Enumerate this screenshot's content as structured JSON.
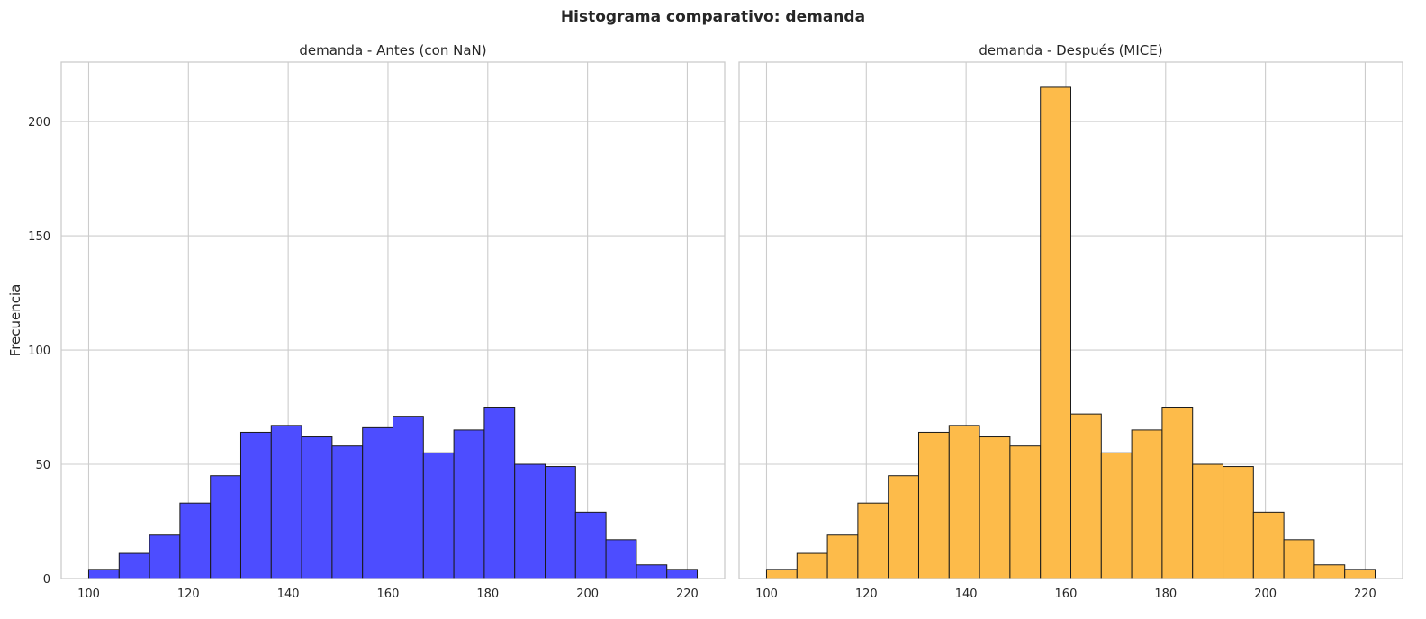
{
  "figure": {
    "title": "Histograma comparativo: demanda"
  },
  "chart_data": [
    {
      "type": "bar",
      "title": "demanda - Antes (con NaN)",
      "xlabel": "",
      "ylabel": "Frecuencia",
      "bin_edges": [
        100,
        106.1,
        112.2,
        118.3,
        124.4,
        130.5,
        136.6,
        142.7,
        148.8,
        154.9,
        161.0,
        167.1,
        173.2,
        179.3,
        185.4,
        191.5,
        197.6,
        203.7,
        209.8,
        215.9,
        222.0
      ],
      "values": [
        4,
        11,
        19,
        33,
        45,
        64,
        67,
        62,
        58,
        66,
        71,
        55,
        65,
        75,
        50,
        49,
        29,
        17,
        6,
        4
      ],
      "xlim": [
        94.5,
        227.5
      ],
      "ylim": [
        0,
        226
      ],
      "xticks": [
        100,
        120,
        140,
        160,
        180,
        200,
        220
      ],
      "yticks": [
        0,
        50,
        100,
        150,
        200
      ],
      "color": "#4d4dff",
      "edgecolor": "#1a1a1a",
      "grid": true
    },
    {
      "type": "bar",
      "title": "demanda - Después (MICE)",
      "xlabel": "",
      "ylabel": "",
      "bin_edges": [
        100,
        106.1,
        112.2,
        118.3,
        124.4,
        130.5,
        136.6,
        142.7,
        148.8,
        154.9,
        161.0,
        167.1,
        173.2,
        179.3,
        185.4,
        191.5,
        197.6,
        203.7,
        209.8,
        215.9,
        222.0
      ],
      "values": [
        4,
        11,
        19,
        33,
        45,
        64,
        67,
        62,
        58,
        215,
        72,
        55,
        65,
        75,
        50,
        49,
        29,
        17,
        6,
        4
      ],
      "xlim": [
        94.5,
        227.5
      ],
      "ylim": [
        0,
        226
      ],
      "xticks": [
        100,
        120,
        140,
        160,
        180,
        200,
        220
      ],
      "yticks": [
        0,
        50,
        100,
        150,
        200
      ],
      "color": "#fdbb4a",
      "edgecolor": "#1a1a1a",
      "grid": true
    }
  ]
}
